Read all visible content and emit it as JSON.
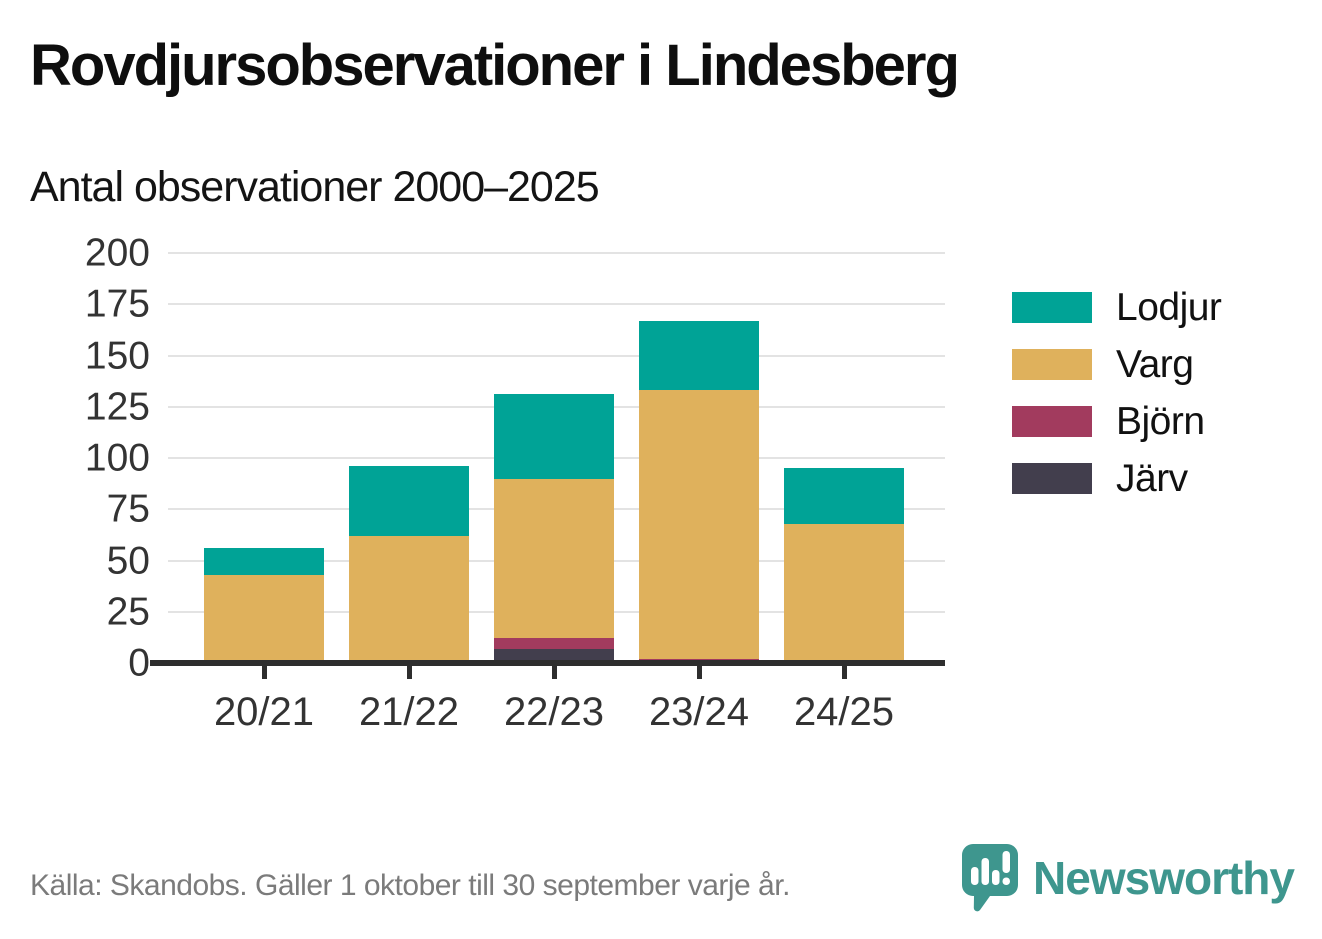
{
  "title": "Rovdjursobservationer i Lindesberg",
  "subtitle": "Antal observationer 2000–2025",
  "source_note": "Källa: Skandobs. Gäller 1 oktober till 30 september varje år.",
  "brand": {
    "name": "Newsworthy",
    "color": "#3e968e",
    "icon": "speech-bubble-bar-chart-exclamation-icon"
  },
  "colors": {
    "background": "#ffffff",
    "gridline": "#e3e3e3",
    "axis": "#2e2e2e",
    "tick_text": "#333333",
    "title_text": "#0e0e0e",
    "source_text": "#7b7b7b"
  },
  "chart_data": {
    "type": "bar",
    "stacked": true,
    "title": "Rovdjursobservationer i Lindesberg",
    "subtitle": "Antal observationer 2000–2025",
    "xlabel": "",
    "ylabel": "",
    "categories": [
      "20/21",
      "21/22",
      "22/23",
      "23/24",
      "24/25"
    ],
    "series": [
      {
        "name": "Järv",
        "color": "#423e4d",
        "values": [
          0,
          0,
          7,
          0,
          0
        ]
      },
      {
        "name": "Björn",
        "color": "#a23b5e",
        "values": [
          1,
          0,
          5,
          2,
          0
        ]
      },
      {
        "name": "Varg",
        "color": "#dfb15c",
        "values": [
          42,
          62,
          78,
          131,
          68
        ]
      },
      {
        "name": "Lodjur",
        "color": "#00a396",
        "values": [
          13,
          34,
          41,
          34,
          27
        ]
      }
    ],
    "stack_order_bottom_to_top": [
      "Järv",
      "Björn",
      "Varg",
      "Lodjur"
    ],
    "totals": [
      56,
      96,
      131,
      167,
      95
    ],
    "ylim": [
      0,
      200
    ],
    "y_ticks": [
      0,
      25,
      50,
      75,
      100,
      125,
      150,
      175,
      200
    ],
    "grid": true,
    "legend_position": "right",
    "legend_order": [
      "Lodjur",
      "Varg",
      "Björn",
      "Järv"
    ]
  }
}
